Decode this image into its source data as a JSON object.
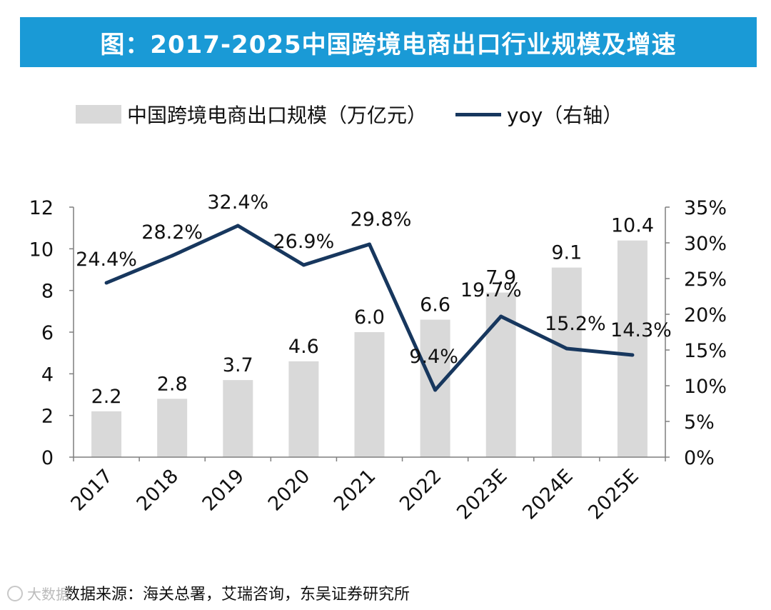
{
  "title": "图：2017-2025中国跨境电商出口行业规模及增速",
  "legend": {
    "bar_label": "中国跨境电商出口规模（万亿元）",
    "line_label": "yoy（右轴）"
  },
  "source": "数据来源：海关总署，艾瑞咨询，东吴证券研究所",
  "watermark": "大数据",
  "colors": {
    "title_bg": "#1a9ad6",
    "bar": "#d9d9d9",
    "line": "#17375e",
    "axis": "#7f7f7f"
  },
  "chart_data": {
    "type": "bar+line",
    "categories": [
      "2017",
      "2018",
      "2019",
      "2020",
      "2021",
      "2022",
      "2023E",
      "2024E",
      "2025E"
    ],
    "series": [
      {
        "name": "中国跨境电商出口规模（万亿元）",
        "type": "bar",
        "axis": "left",
        "values": [
          2.2,
          2.8,
          3.7,
          4.6,
          6.0,
          6.6,
          7.9,
          9.1,
          10.4
        ],
        "labels": [
          "2.2",
          "2.8",
          "3.7",
          "4.6",
          "6.0",
          "6.6",
          "7.9",
          "9.1",
          "10.4"
        ]
      },
      {
        "name": "yoy（右轴）",
        "type": "line",
        "axis": "right",
        "values": [
          24.4,
          28.2,
          32.4,
          26.9,
          29.8,
          9.4,
          19.7,
          15.2,
          14.3
        ],
        "labels": [
          "24.4%",
          "28.2%",
          "32.4%",
          "26.9%",
          "29.8%",
          "9.4%",
          "19.7%",
          "15.2%",
          "14.3%"
        ]
      }
    ],
    "y_left": {
      "min": 0,
      "max": 12,
      "ticks": [
        "0",
        "2",
        "4",
        "6",
        "8",
        "10",
        "12"
      ]
    },
    "y_right": {
      "min": 0,
      "max": 35,
      "ticks": [
        "0%",
        "5%",
        "10%",
        "15%",
        "20%",
        "25%",
        "30%",
        "35%"
      ]
    },
    "grid": false,
    "legend_position": "top"
  }
}
